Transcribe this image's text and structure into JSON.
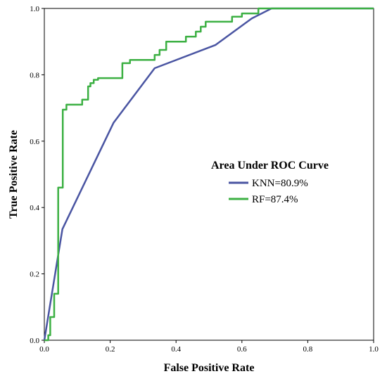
{
  "chart_data": {
    "type": "line",
    "xlabel": "False Positive Rate",
    "ylabel": "True Positive Rate",
    "xlim": [
      0.0,
      1.0
    ],
    "ylim": [
      0.0,
      1.0
    ],
    "x_ticks": [
      "0.0",
      "0.2",
      "0.4",
      "0.6",
      "0.8",
      "1.0"
    ],
    "y_ticks": [
      "0.0",
      "0.2",
      "0.4",
      "0.6",
      "0.8",
      "1.0"
    ],
    "grid": false,
    "legend": {
      "title": "Area Under ROC Curve",
      "placement": "center-right"
    },
    "series": [
      {
        "name": "KNN=80.9%",
        "color": "#4a55a2",
        "points": [
          [
            0.0,
            0.0
          ],
          [
            0.055,
            0.335
          ],
          [
            0.21,
            0.655
          ],
          [
            0.335,
            0.82
          ],
          [
            0.52,
            0.89
          ],
          [
            0.63,
            0.97
          ],
          [
            0.69,
            1.0
          ],
          [
            1.0,
            1.0
          ]
        ]
      },
      {
        "name": "RF=87.4%",
        "color": "#3cb043",
        "points": [
          [
            0.0,
            0.0
          ],
          [
            0.012,
            0.0
          ],
          [
            0.012,
            0.015
          ],
          [
            0.018,
            0.015
          ],
          [
            0.018,
            0.07
          ],
          [
            0.03,
            0.07
          ],
          [
            0.03,
            0.14
          ],
          [
            0.042,
            0.14
          ],
          [
            0.042,
            0.215
          ],
          [
            0.042,
            0.46
          ],
          [
            0.056,
            0.46
          ],
          [
            0.056,
            0.695
          ],
          [
            0.067,
            0.695
          ],
          [
            0.067,
            0.71
          ],
          [
            0.115,
            0.71
          ],
          [
            0.115,
            0.725
          ],
          [
            0.133,
            0.725
          ],
          [
            0.133,
            0.765
          ],
          [
            0.14,
            0.765
          ],
          [
            0.14,
            0.775
          ],
          [
            0.15,
            0.775
          ],
          [
            0.15,
            0.785
          ],
          [
            0.163,
            0.785
          ],
          [
            0.163,
            0.79
          ],
          [
            0.237,
            0.79
          ],
          [
            0.237,
            0.835
          ],
          [
            0.26,
            0.835
          ],
          [
            0.26,
            0.845
          ],
          [
            0.335,
            0.845
          ],
          [
            0.335,
            0.86
          ],
          [
            0.35,
            0.86
          ],
          [
            0.35,
            0.875
          ],
          [
            0.37,
            0.875
          ],
          [
            0.37,
            0.9
          ],
          [
            0.43,
            0.9
          ],
          [
            0.43,
            0.915
          ],
          [
            0.46,
            0.915
          ],
          [
            0.46,
            0.93
          ],
          [
            0.475,
            0.93
          ],
          [
            0.475,
            0.945
          ],
          [
            0.49,
            0.945
          ],
          [
            0.49,
            0.96
          ],
          [
            0.57,
            0.96
          ],
          [
            0.57,
            0.975
          ],
          [
            0.6,
            0.975
          ],
          [
            0.6,
            0.985
          ],
          [
            0.65,
            0.985
          ],
          [
            0.65,
            1.0
          ],
          [
            1.0,
            1.0
          ]
        ]
      }
    ]
  }
}
